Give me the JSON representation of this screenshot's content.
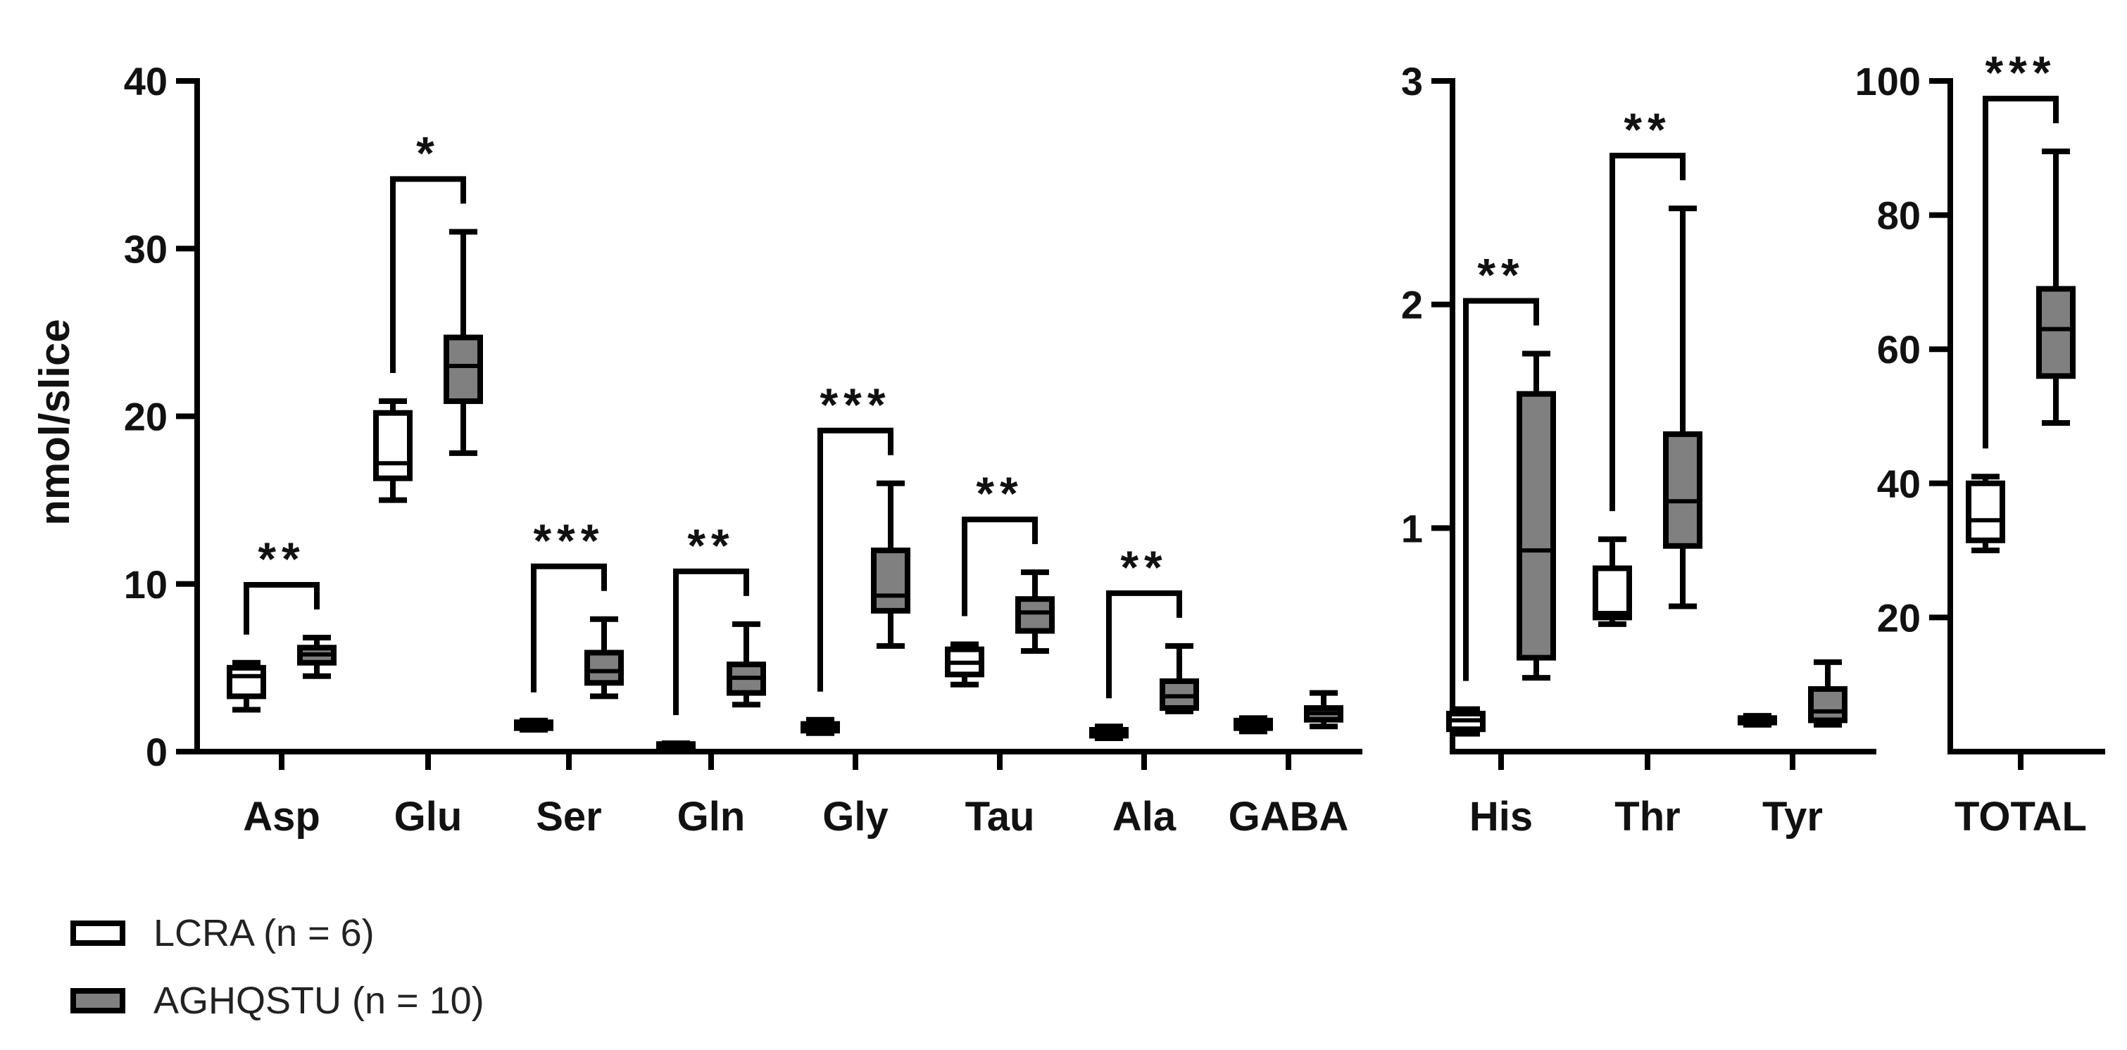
{
  "chart_data": {
    "type": "boxplot",
    "ylabel": "nmol/slice",
    "colors": {
      "LCRA": "#ffffff",
      "AGHQSTU": "#808080",
      "stroke": "#000000"
    },
    "legend": [
      {
        "label": "LCRA (n = 6)",
        "group": "LCRA"
      },
      {
        "label": "AGHQSTU (n = 10)",
        "group": "AGHQSTU"
      }
    ],
    "panels": [
      {
        "name": "panel-1",
        "ylim": [
          0,
          40
        ],
        "yticks": [
          0,
          10,
          20,
          30,
          40
        ],
        "categories": [
          {
            "label": "Asp",
            "sig": "**",
            "LCRA": {
              "min": 2.5,
              "q1": 3.3,
              "median": 4.5,
              "q3": 5.0,
              "max": 5.3
            },
            "AGHQSTU": {
              "min": 4.5,
              "q1": 5.3,
              "median": 5.8,
              "q3": 6.2,
              "max": 6.8
            }
          },
          {
            "label": "Glu",
            "sig": "*",
            "LCRA": {
              "min": 15.0,
              "q1": 16.3,
              "median": 17.2,
              "q3": 20.2,
              "max": 20.9
            },
            "AGHQSTU": {
              "min": 17.8,
              "q1": 20.9,
              "median": 23.0,
              "q3": 24.7,
              "max": 31.0
            }
          },
          {
            "label": "Ser",
            "sig": "***",
            "LCRA": {
              "min": 1.3,
              "q1": 1.4,
              "median": 1.6,
              "q3": 1.75,
              "max": 1.85
            },
            "AGHQSTU": {
              "min": 3.3,
              "q1": 4.1,
              "median": 4.8,
              "q3": 5.9,
              "max": 7.9
            }
          },
          {
            "label": "Gln",
            "sig": "**",
            "LCRA": {
              "min": 0.2,
              "q1": 0.25,
              "median": 0.35,
              "q3": 0.45,
              "max": 0.5
            },
            "AGHQSTU": {
              "min": 2.8,
              "q1": 3.5,
              "median": 4.4,
              "q3": 5.2,
              "max": 7.6
            }
          },
          {
            "label": "Gly",
            "sig": "***",
            "LCRA": {
              "min": 1.1,
              "q1": 1.25,
              "median": 1.45,
              "q3": 1.65,
              "max": 1.9
            },
            "AGHQSTU": {
              "min": 6.3,
              "q1": 8.4,
              "median": 9.3,
              "q3": 12.0,
              "max": 16.0
            }
          },
          {
            "label": "Tau",
            "sig": "**",
            "LCRA": {
              "min": 4.0,
              "q1": 4.6,
              "median": 5.3,
              "q3": 6.1,
              "max": 6.4
            },
            "AGHQSTU": {
              "min": 6.0,
              "q1": 7.2,
              "median": 8.3,
              "q3": 9.1,
              "max": 10.7
            }
          },
          {
            "label": "Ala",
            "sig": "**",
            "LCRA": {
              "min": 0.8,
              "q1": 0.95,
              "median": 1.1,
              "q3": 1.3,
              "max": 1.5
            },
            "AGHQSTU": {
              "min": 2.4,
              "q1": 2.6,
              "median": 3.3,
              "q3": 4.2,
              "max": 6.3
            }
          },
          {
            "label": "GABA",
            "sig": "",
            "LCRA": {
              "min": 1.2,
              "q1": 1.4,
              "median": 1.6,
              "q3": 1.85,
              "max": 2.0
            },
            "AGHQSTU": {
              "min": 1.5,
              "q1": 1.9,
              "median": 2.3,
              "q3": 2.6,
              "max": 3.5
            }
          }
        ]
      },
      {
        "name": "panel-2",
        "ylim": [
          0,
          3
        ],
        "yticks": [
          1,
          2,
          3
        ],
        "categories": [
          {
            "label": "His",
            "sig": "**",
            "LCRA": {
              "min": 0.08,
              "q1": 0.1,
              "median": 0.14,
              "q3": 0.17,
              "max": 0.19
            },
            "AGHQSTU": {
              "min": 0.33,
              "q1": 0.42,
              "median": 0.9,
              "q3": 1.6,
              "max": 1.78
            }
          },
          {
            "label": "Thr",
            "sig": "**",
            "LCRA": {
              "min": 0.57,
              "q1": 0.6,
              "median": 0.62,
              "q3": 0.82,
              "max": 0.95
            },
            "AGHQSTU": {
              "min": 0.65,
              "q1": 0.92,
              "median": 1.12,
              "q3": 1.42,
              "max": 2.43
            }
          },
          {
            "label": "Tyr",
            "sig": "",
            "LCRA": {
              "min": 0.12,
              "q1": 0.13,
              "median": 0.14,
              "q3": 0.15,
              "max": 0.16
            },
            "AGHQSTU": {
              "min": 0.12,
              "q1": 0.14,
              "median": 0.18,
              "q3": 0.28,
              "max": 0.4
            }
          }
        ]
      },
      {
        "name": "panel-3",
        "ylim": [
          0,
          100
        ],
        "yticks": [
          20,
          40,
          60,
          80,
          100
        ],
        "categories": [
          {
            "label": "TOTAL",
            "sig": "***",
            "LCRA": {
              "min": 30.0,
              "q1": 31.5,
              "median": 34.5,
              "q3": 40.0,
              "max": 41.0
            },
            "AGHQSTU": {
              "min": 49.0,
              "q1": 56.0,
              "median": 63.0,
              "q3": 69.0,
              "max": 89.5
            }
          }
        ]
      }
    ]
  }
}
